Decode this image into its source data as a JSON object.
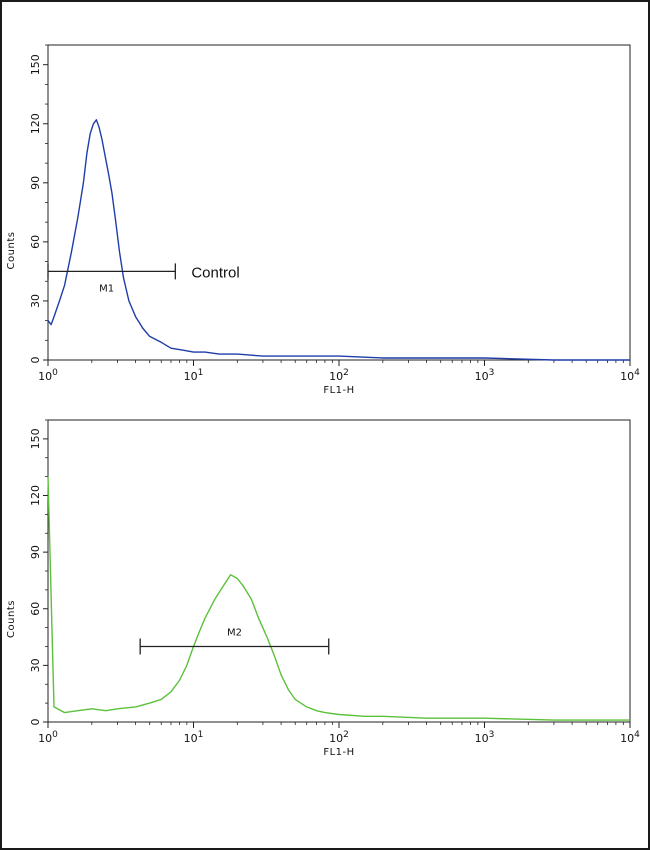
{
  "chart_data": [
    {
      "type": "line",
      "title": "",
      "xlabel": "FL1-H",
      "ylabel": "Counts",
      "xscale": "log",
      "xlim": [
        1,
        10000
      ],
      "ylim": [
        0,
        160
      ],
      "x_ticks": [
        "10^0",
        "10^1",
        "10^2",
        "10^3",
        "10^4"
      ],
      "y_ticks": [
        0,
        30,
        60,
        90,
        120,
        150
      ],
      "color": "#1f3da8",
      "annotation": "Control",
      "marker": {
        "label": "M1",
        "x_start": 1.0,
        "x_end": 7.5,
        "y": 45
      },
      "series": [
        {
          "x": [
            1.0,
            1.05,
            1.1,
            1.2,
            1.3,
            1.45,
            1.6,
            1.75,
            1.85,
            1.95,
            2.05,
            2.15,
            2.25,
            2.35,
            2.45,
            2.6,
            2.75,
            2.9,
            3.1,
            3.3,
            3.6,
            4.0,
            4.5,
            5.0,
            6.0,
            7.0,
            8.5,
            10,
            12,
            15,
            20,
            30,
            50,
            100,
            200,
            400,
            1000,
            3000,
            10000
          ],
          "y": [
            20,
            18,
            22,
            30,
            38,
            55,
            72,
            90,
            105,
            115,
            120,
            122,
            118,
            112,
            105,
            95,
            85,
            72,
            55,
            42,
            30,
            22,
            16,
            12,
            9,
            6,
            5,
            4,
            4,
            3,
            3,
            2,
            2,
            2,
            1,
            1,
            1,
            0,
            0
          ]
        }
      ]
    },
    {
      "type": "line",
      "title": "",
      "xlabel": "FL1-H",
      "ylabel": "Counts",
      "xscale": "log",
      "xlim": [
        1,
        10000
      ],
      "ylim": [
        0,
        160
      ],
      "x_ticks": [
        "10^0",
        "10^1",
        "10^2",
        "10^3",
        "10^4"
      ],
      "y_ticks": [
        0,
        30,
        60,
        90,
        120,
        150
      ],
      "color": "#5cc13a",
      "marker": {
        "label": "M2",
        "x_start": 4.3,
        "x_end": 85,
        "y": 40
      },
      "series": [
        {
          "x": [
            1.0,
            1.1,
            1.3,
            1.6,
            2.0,
            2.5,
            3.0,
            4.0,
            5.0,
            6.0,
            7.0,
            8.0,
            9.0,
            10,
            11,
            12,
            14,
            16,
            18,
            20,
            22,
            25,
            28,
            32,
            36,
            40,
            45,
            50,
            60,
            70,
            80,
            100,
            150,
            200,
            400,
            1000,
            3000,
            10000
          ],
          "y": [
            130,
            8,
            5,
            6,
            7,
            6,
            7,
            8,
            10,
            12,
            16,
            22,
            30,
            40,
            48,
            55,
            65,
            72,
            78,
            76,
            72,
            65,
            55,
            45,
            35,
            25,
            17,
            12,
            8,
            6,
            5,
            4,
            3,
            3,
            2,
            2,
            1,
            1
          ]
        }
      ]
    }
  ]
}
